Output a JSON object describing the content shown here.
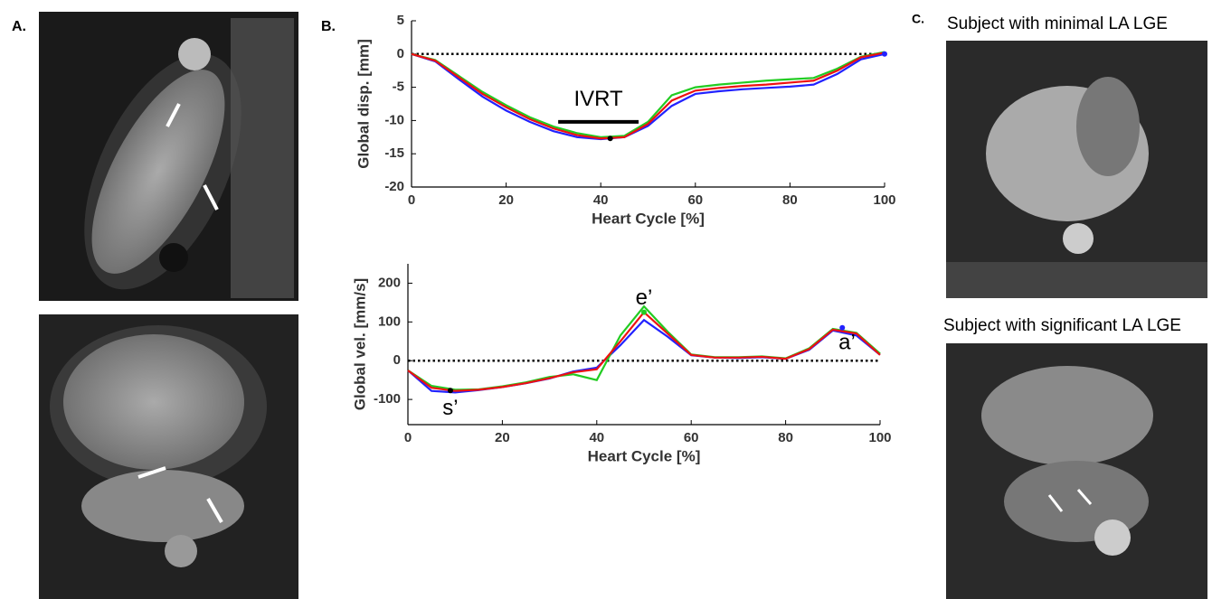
{
  "figure": {
    "panel_labels": [
      "A.",
      "B.",
      "C."
    ],
    "captions": [
      "Subject with minimal LA LGE",
      "Subject with significant LA LGE"
    ]
  },
  "chart_data": [
    {
      "type": "line",
      "xlabel": "Heart Cycle [%]",
      "ylabel": "Global disp. [mm]",
      "x": [
        0,
        5,
        10,
        15,
        20,
        25,
        30,
        35,
        40,
        45,
        50,
        55,
        60,
        65,
        70,
        75,
        80,
        85,
        90,
        95,
        100
      ],
      "series": [
        {
          "color": "#2222ff",
          "values": [
            0,
            -1.1,
            -3.8,
            -6.4,
            -8.5,
            -10.2,
            -11.6,
            -12.5,
            -12.8,
            -12.5,
            -10.8,
            -7.8,
            -6,
            -5.6,
            -5.3,
            -5.1,
            -4.9,
            -4.6,
            -3,
            -0.8,
            0
          ]
        },
        {
          "color": "#22cc22",
          "values": [
            0,
            -0.9,
            -3.3,
            -5.7,
            -7.7,
            -9.5,
            -10.9,
            -11.9,
            -12.5,
            -12.3,
            -10.2,
            -6.2,
            -5,
            -4.6,
            -4.3,
            -4,
            -3.8,
            -3.6,
            -2.2,
            -0.4,
            0.3
          ]
        },
        {
          "color": "#ee1111",
          "values": [
            0,
            -1,
            -3.5,
            -6,
            -8,
            -9.8,
            -11.2,
            -12.2,
            -12.7,
            -12.5,
            -10.5,
            -7,
            -5.5,
            -5.1,
            -4.8,
            -4.6,
            -4.3,
            -4,
            -2.5,
            -0.5,
            0.2
          ]
        }
      ],
      "xlim": [
        0,
        100
      ],
      "xticks": [
        0,
        20,
        40,
        60,
        80,
        100
      ],
      "ylim": [
        -20,
        5
      ],
      "yticks": [
        -20,
        -15,
        -10,
        -5,
        0,
        5
      ],
      "hline": 0,
      "interval": {
        "label": "IVRT",
        "x": [
          31,
          48
        ],
        "y": -10.2
      },
      "markers": [
        {
          "x": 42,
          "y": -12.7,
          "color": "#000000"
        },
        {
          "x": 100,
          "y": 0,
          "color": "#2222ff"
        }
      ]
    },
    {
      "type": "line",
      "xlabel": "Heart Cycle [%]",
      "ylabel": "Global vel. [mm/s]",
      "x": [
        0,
        5,
        10,
        15,
        20,
        25,
        30,
        35,
        40,
        45,
        50,
        55,
        60,
        65,
        70,
        75,
        80,
        85,
        90,
        95,
        100
      ],
      "series": [
        {
          "color": "#2222ff",
          "values": [
            -25,
            -78,
            -82,
            -76,
            -68,
            -58,
            -46,
            -28,
            -18,
            40,
            105,
            62,
            14,
            8,
            7,
            9,
            5,
            28,
            78,
            65,
            15
          ]
        },
        {
          "color": "#22cc22",
          "values": [
            -25,
            -65,
            -75,
            -74,
            -66,
            -56,
            -42,
            -35,
            -50,
            65,
            140,
            75,
            16,
            9,
            9,
            11,
            6,
            32,
            82,
            72,
            18
          ]
        },
        {
          "color": "#ee1111",
          "values": [
            -25,
            -70,
            -78,
            -75,
            -68,
            -58,
            -45,
            -30,
            -22,
            50,
            125,
            70,
            15,
            8,
            8,
            10,
            5,
            30,
            80,
            70,
            15
          ]
        }
      ],
      "xlim": [
        0,
        100
      ],
      "xticks": [
        0,
        20,
        40,
        60,
        80,
        100
      ],
      "ylim": [
        -165,
        250
      ],
      "yticks": [
        -100,
        0,
        100,
        200
      ],
      "hline": 0,
      "annotations": [
        {
          "text": "e’",
          "x": 50,
          "y": 160
        },
        {
          "text": "s’",
          "x": 9,
          "y": -125
        },
        {
          "text": "a’",
          "x": 93,
          "y": 45
        }
      ],
      "markers": [
        {
          "x": 9,
          "y": -77,
          "color": "#000000"
        },
        {
          "x": 50,
          "y": 125,
          "color": "#22cc22"
        },
        {
          "x": 92,
          "y": 85,
          "color": "#2222ff"
        }
      ]
    }
  ]
}
